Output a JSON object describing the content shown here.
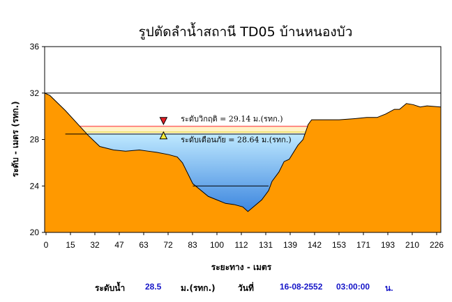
{
  "chart_data": {
    "type": "area",
    "title": "รูปตัดลำน้ำสถานี TD05 บ้านหนองบัว",
    "xlabel": "ระยะทาง - เมตร",
    "ylabel": "ระดับ - เมตร (รทก.)",
    "xlim": [
      0,
      230
    ],
    "ylim": [
      20,
      36
    ],
    "x_ticks": [
      "0",
      "15",
      "32",
      "47",
      "63",
      "72",
      "83",
      "100",
      "112",
      "131",
      "139",
      "142",
      "153",
      "171",
      "193",
      "210",
      "226"
    ],
    "y_ticks": [
      "20",
      "24",
      "28",
      "32",
      "36"
    ],
    "bank_top": 32,
    "water_level": 28.5,
    "critical_level": 29.14,
    "warning_level": 28.64,
    "ground_profile": {
      "x": [
        0,
        3,
        12,
        25,
        32,
        40,
        47,
        55,
        60,
        65,
        72,
        77,
        80,
        86,
        95,
        100,
        105,
        110,
        115,
        118,
        126,
        130,
        132,
        136,
        139,
        142,
        147,
        150,
        153,
        155,
        158,
        165,
        171,
        180,
        187,
        193,
        198,
        203,
        206,
        210,
        214,
        218,
        222,
        230
      ],
      "y": [
        32,
        31.8,
        30.5,
        28.4,
        27.4,
        27.1,
        27.0,
        27.1,
        27.0,
        26.9,
        26.7,
        26.5,
        26.0,
        24.2,
        23.1,
        22.8,
        22.5,
        22.4,
        22.2,
        21.8,
        22.8,
        23.6,
        24.4,
        25.2,
        26.1,
        26.3,
        27.5,
        28.0,
        29.3,
        29.7,
        29.7,
        29.7,
        29.7,
        29.8,
        29.9,
        29.9,
        30.2,
        30.6,
        30.6,
        31.1,
        31.0,
        30.8,
        30.9,
        30.8
      ]
    },
    "annotations": [
      {
        "text": "ระดับวิกฤติ = 29.14 ม.(รทก.)",
        "color": "#e41f26"
      },
      {
        "text": "ระดับเตือนภัย = 28.64 ม.(รทก.)",
        "color": "#f2ea3a"
      }
    ],
    "colors": {
      "ground": "#ff9900",
      "water_top": "#bfe9ff",
      "water_bottom": "#1a6cd6",
      "critical": "#ff6666",
      "warning": "#e8d84a"
    },
    "grid": false
  },
  "footer": {
    "level_label": "ระดับน้ำ",
    "level_value": "28.5",
    "unit": "ม.(รทก.)",
    "date_label": "วันที่",
    "date_value": "16-08-2552",
    "time_value": "03:00:00",
    "time_unit": "น."
  }
}
